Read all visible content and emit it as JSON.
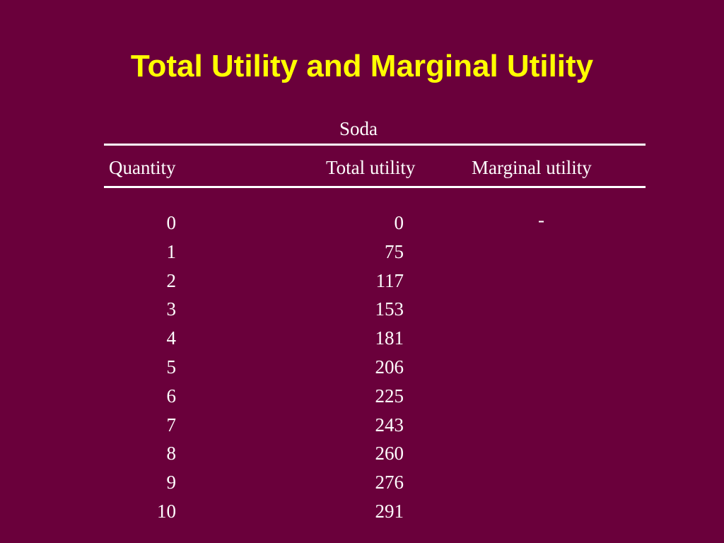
{
  "slide": {
    "title": "Total Utility and Marginal Utility"
  },
  "table": {
    "group_header": "Soda",
    "columns": [
      "Quantity",
      "Total utility",
      "Marginal utility"
    ],
    "rows": [
      {
        "quantity": "0",
        "total_utility": "0",
        "marginal_utility": "-"
      },
      {
        "quantity": "1",
        "total_utility": "75",
        "marginal_utility": ""
      },
      {
        "quantity": "2",
        "total_utility": "117",
        "marginal_utility": ""
      },
      {
        "quantity": "3",
        "total_utility": "153",
        "marginal_utility": ""
      },
      {
        "quantity": "4",
        "total_utility": "181",
        "marginal_utility": ""
      },
      {
        "quantity": "5",
        "total_utility": "206",
        "marginal_utility": ""
      },
      {
        "quantity": "6",
        "total_utility": "225",
        "marginal_utility": ""
      },
      {
        "quantity": "7",
        "total_utility": "243",
        "marginal_utility": ""
      },
      {
        "quantity": "8",
        "total_utility": "260",
        "marginal_utility": ""
      },
      {
        "quantity": "9",
        "total_utility": "276",
        "marginal_utility": ""
      },
      {
        "quantity": "10",
        "total_utility": "291",
        "marginal_utility": ""
      }
    ]
  },
  "colors": {
    "background": "#6a003b",
    "title": "#ffff00",
    "text": "#ffffff"
  }
}
